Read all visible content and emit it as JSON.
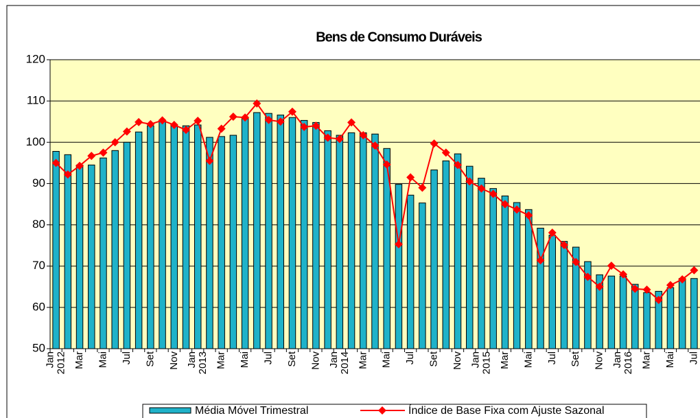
{
  "chart_data": {
    "type": "bar_line",
    "title": "Bens de Consumo Duráveis",
    "categories": [
      "Jan 2012",
      null,
      "Mar",
      null,
      "Mai",
      null,
      "Jul",
      null,
      "Set",
      null,
      "Nov",
      null,
      "Jan 2013",
      null,
      "Mar",
      null,
      "Mai",
      null,
      "Jul",
      null,
      "Set",
      null,
      "Nov",
      null,
      "Jan 2014",
      null,
      "Mar",
      null,
      "Mai",
      null,
      "Jul",
      null,
      "Set",
      null,
      "Nov",
      null,
      "Jan 2015",
      null,
      "Mar",
      null,
      "Mai",
      null,
      "Jul",
      null,
      "Set",
      null,
      "Nov",
      null,
      "Jan 2016",
      null,
      "Mar",
      null,
      "Mai",
      null,
      "Jul"
    ],
    "series": [
      {
        "name": "Média Móvel Trimestral",
        "type": "bar",
        "color": "#1fb2c9",
        "values": [
          97.8,
          97,
          94.5,
          94.5,
          96.2,
          98,
          100,
          102.5,
          104,
          105,
          104.3,
          104,
          104.2,
          101.2,
          101.4,
          101.7,
          105.8,
          107.2,
          107,
          106.6,
          106,
          105.3,
          104.8,
          102.8,
          101.7,
          102.3,
          102.3,
          102,
          98.5,
          89.8,
          87.2,
          85.3,
          93.3,
          95.5,
          97.2,
          94.2,
          91.3,
          88.8,
          87,
          85.4,
          83.7,
          79.2,
          77.5,
          76,
          74.6,
          71.1,
          67.9,
          67.6,
          67.6,
          65.6,
          63.6,
          63.9,
          64.8,
          67,
          67
        ]
      },
      {
        "name": "Índice de Base Fixa com Ajuste Sazonal",
        "type": "line",
        "color": "#ff0000",
        "values": [
          95,
          92.2,
          94.3,
          96.7,
          97.5,
          100,
          102.6,
          104.9,
          104.4,
          105.3,
          104.2,
          103,
          105.2,
          95.5,
          103.3,
          106.2,
          106,
          109.4,
          105.4,
          105,
          107.4,
          103.7,
          104,
          101.1,
          100.8,
          104.8,
          101.7,
          99.2,
          94.6,
          75.3,
          91.5,
          89,
          99.7,
          97.5,
          94.5,
          90.5,
          88.8,
          87.5,
          85,
          83.7,
          82.3,
          71.4,
          78.1,
          75.1,
          71,
          67.4,
          65,
          70.1,
          68,
          64.5,
          64.3,
          61.8,
          65.4,
          66.8,
          69
        ]
      }
    ],
    "ylim": [
      50,
      120
    ],
    "yticks": [
      50,
      60,
      70,
      80,
      90,
      100,
      110,
      120
    ],
    "grid": true,
    "legend": "bottom",
    "plot_background": "#ffffc0"
  }
}
